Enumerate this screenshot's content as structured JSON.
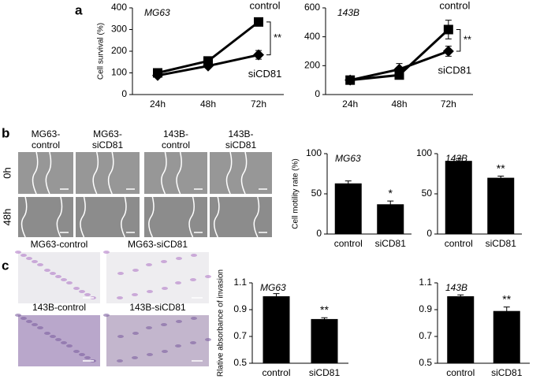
{
  "figure": {
    "panels": [
      "a",
      "b",
      "c"
    ]
  },
  "motility_images": {
    "columns": [
      [
        "MG63-",
        "control"
      ],
      [
        "MG63-",
        "siCD81"
      ],
      [
        "143B-",
        "control"
      ],
      [
        "143B-",
        "siCD81"
      ]
    ],
    "rows": [
      "0h",
      "48h"
    ]
  },
  "invasion_images": {
    "labels": [
      "MG63-control",
      "MG63-siCD81",
      "143B-control",
      "143B-siCD81"
    ]
  },
  "chart_data": [
    {
      "type": "line",
      "title": "MG63",
      "y_label": "Cell survival (%)",
      "categories": [
        "24h",
        "48h",
        "72h"
      ],
      "ylim": [
        0,
        400
      ],
      "yticks": [
        0,
        100,
        200,
        300,
        400
      ],
      "annotation": "**",
      "series": [
        {
          "name": "control",
          "color": "#000000",
          "marker": "square",
          "values": [
            100,
            155,
            335
          ],
          "errors": [
            8,
            10,
            10
          ]
        },
        {
          "name": "siCD81",
          "color": "#000000",
          "marker": "diamond",
          "values": [
            88,
            132,
            183
          ],
          "errors": [
            6,
            10,
            20
          ]
        }
      ]
    },
    {
      "type": "line",
      "title": "143B",
      "categories": [
        "24h",
        "48h",
        "72h"
      ],
      "ylim": [
        0,
        600
      ],
      "yticks": [
        0,
        200,
        400,
        600
      ],
      "annotation": "**",
      "series": [
        {
          "name": "control",
          "color": "#000000",
          "marker": "square",
          "values": [
            100,
            135,
            450
          ],
          "errors": [
            10,
            15,
            65
          ]
        },
        {
          "name": "siCD81",
          "color": "#000000",
          "marker": "diamond",
          "values": [
            100,
            175,
            300
          ],
          "errors": [
            10,
            40,
            35
          ]
        }
      ]
    },
    {
      "type": "bar",
      "title": "MG63",
      "y_label": "Cell motility rate (%)",
      "categories": [
        "control",
        "siCD81"
      ],
      "values": [
        63,
        37
      ],
      "errors": [
        3,
        4
      ],
      "color": "#000000",
      "ylim": [
        0,
        100
      ],
      "yticks": [
        0,
        50,
        100
      ],
      "annotation": "*"
    },
    {
      "type": "bar",
      "title": "143B",
      "categories": [
        "control",
        "siCD81"
      ],
      "values": [
        91,
        70
      ],
      "errors": [
        3,
        2
      ],
      "color": "#000000",
      "ylim": [
        0,
        100
      ],
      "yticks": [
        0,
        50,
        100
      ],
      "annotation": "**"
    },
    {
      "type": "bar",
      "title": "MG63",
      "y_label": "Rlative absorbance of invasion",
      "categories": [
        "control",
        "siCD81"
      ],
      "values": [
        1.0,
        0.83
      ],
      "errors": [
        0.02,
        0.01
      ],
      "color": "#000000",
      "ylim": [
        0.5,
        1.1
      ],
      "yticks": [
        0.5,
        0.7,
        0.9,
        1.1
      ],
      "annotation": "**"
    },
    {
      "type": "bar",
      "title": "143B",
      "categories": [
        "control",
        "siCD81"
      ],
      "values": [
        1.0,
        0.89
      ],
      "errors": [
        0.01,
        0.03
      ],
      "color": "#000000",
      "ylim": [
        0.5,
        1.1
      ],
      "yticks": [
        0.5,
        0.7,
        0.9,
        1.1
      ],
      "annotation": "**"
    }
  ]
}
